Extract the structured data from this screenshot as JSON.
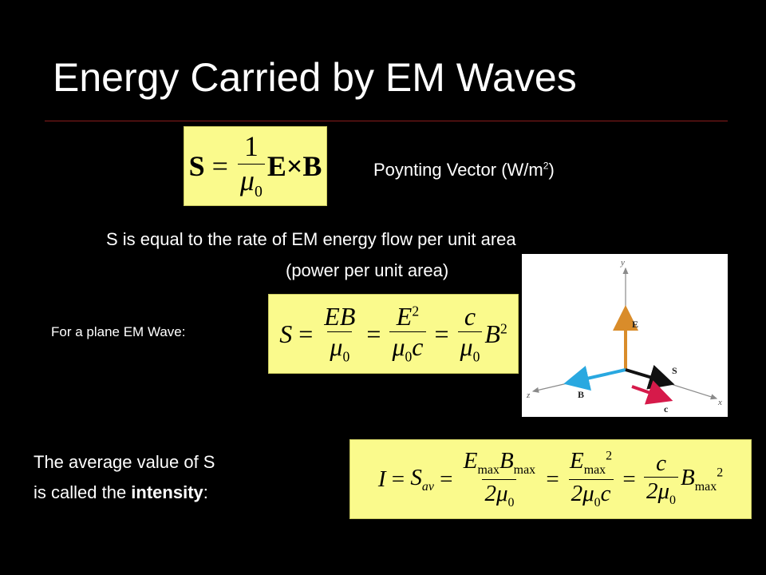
{
  "title": "Energy Carried by EM Waves",
  "poynting": {
    "label": "Poynting Vector (W/m",
    "label_sup": "2",
    "label_close": ")",
    "eq": {
      "lhs": "S",
      "num": "1",
      "den": "μ",
      "den_sub": "0",
      "rhs": "E×B"
    }
  },
  "description": {
    "line1": "S is equal to the rate of EM energy flow per unit area",
    "line2": "(power per unit area)"
  },
  "plane": {
    "label": "For a plane EM Wave:",
    "eq": {
      "lhs": "S",
      "f1_num": "EB",
      "f1_den": "μ",
      "f1_den_sub": "0",
      "f2_num": "E",
      "f2_num_sup": "2",
      "f2_den": "μ",
      "f2_den_sub": "0",
      "f2_den_tail": "c",
      "f3_num": "c",
      "f3_den": "μ",
      "f3_den_sub": "0",
      "tail": "B",
      "tail_sup": "2"
    }
  },
  "intensity": {
    "line1": "The average value of S",
    "line2_pre": "is called the ",
    "line2_bold": "intensity",
    "line2_post": ":",
    "eq": {
      "lhs": "I",
      "s_av": "S",
      "s_av_sub": "av",
      "f1_num_a": "E",
      "f1_num_a_sub": "max",
      "f1_num_b": "B",
      "f1_num_b_sub": "max",
      "f1_den": "2μ",
      "f1_den_sub": "0",
      "f2_num": "E",
      "f2_num_sub": "max",
      "f2_num_sup": "2",
      "f2_den": "2μ",
      "f2_den_sub": "0",
      "f2_den_tail": "c",
      "f3_num": "c",
      "f3_den": "2μ",
      "f3_den_sub": "0",
      "tail": "B",
      "tail_sub": "max",
      "tail_sup": "2"
    }
  },
  "diagram": {
    "axis_x": "x",
    "axis_y": "y",
    "axis_z": "z",
    "vec_E": "E",
    "vec_B": "B",
    "vec_S": "S",
    "vec_c": "c",
    "colors": {
      "E": "#d98c2a",
      "B": "#29a8e0",
      "S": "#111111",
      "c": "#d61a4a",
      "axis": "#8a8a8a"
    }
  }
}
